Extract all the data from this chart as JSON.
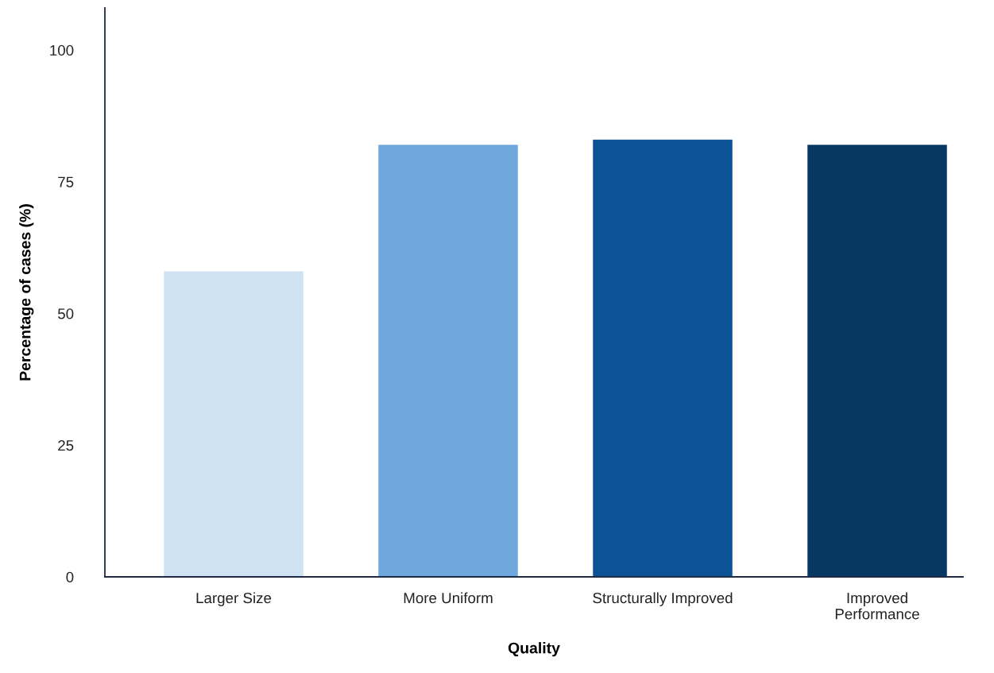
{
  "chart_data": {
    "type": "bar",
    "xlabel": "Quality",
    "ylabel": "Percentage of cases (%)",
    "categories": [
      "Larger Size",
      "More Uniform",
      "Structurally Improved",
      "Improved\nPerformance"
    ],
    "values": [
      58,
      82,
      83,
      82
    ],
    "colors": [
      "#cfe2f3",
      "#6fa8dc",
      "#0b5394",
      "#073763"
    ],
    "ylim": [
      0,
      108
    ],
    "yticks": [
      0,
      25,
      50,
      75,
      100
    ],
    "grid": false,
    "legend": false
  }
}
